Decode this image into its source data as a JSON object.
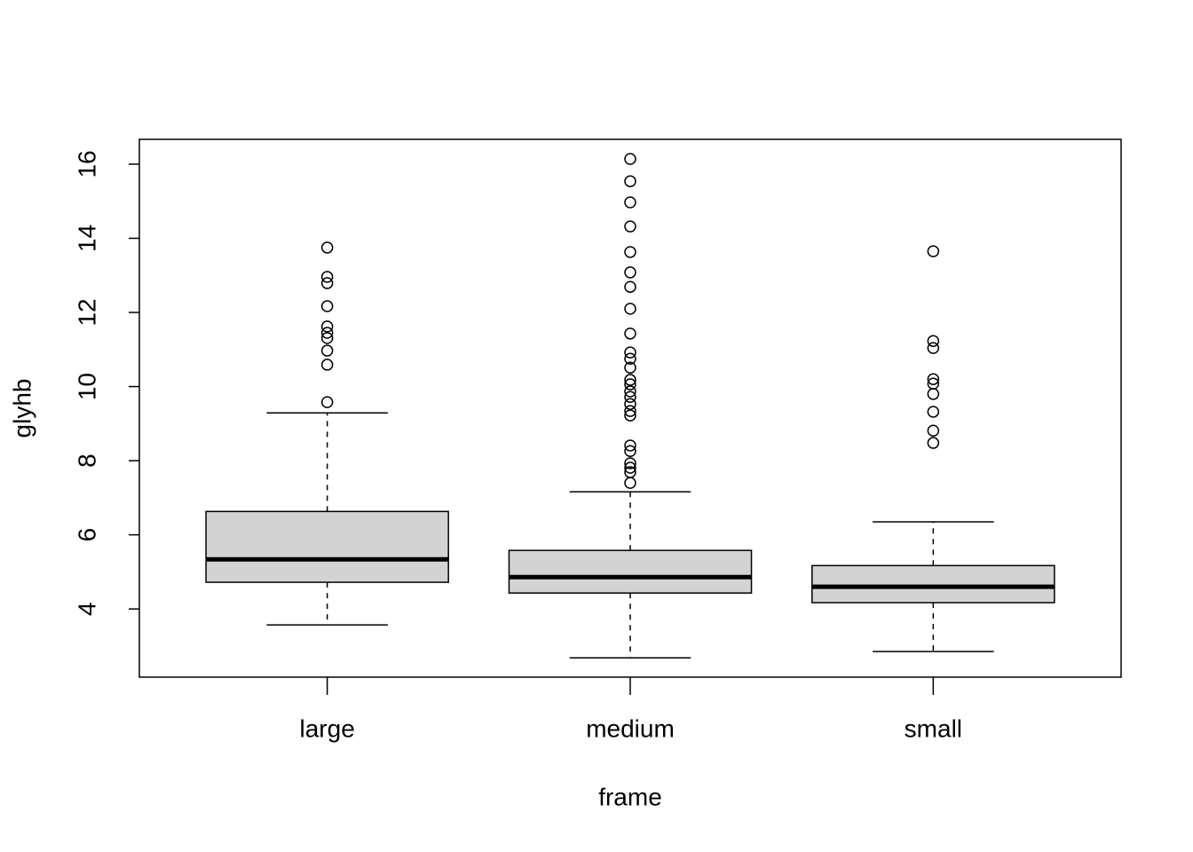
{
  "chart_data": {
    "type": "box",
    "xlabel": "frame",
    "ylabel": "glyhb",
    "categories": [
      "large",
      "medium",
      "small"
    ],
    "color": "#d3d3d3",
    "boxes": [
      {
        "whislo": 3.57,
        "q1": 4.72,
        "med": 5.34,
        "q3": 6.63,
        "whishi": 9.29,
        "outliers": [
          13.75,
          12.96,
          12.79,
          12.17,
          11.62,
          11.45,
          11.31,
          10.97,
          10.59,
          9.58
        ]
      },
      {
        "whislo": 2.68,
        "q1": 4.43,
        "med": 4.86,
        "q3": 5.58,
        "whishi": 7.16,
        "outliers": [
          16.14,
          15.54,
          14.97,
          14.32,
          13.63,
          13.08,
          12.69,
          12.1,
          11.43,
          10.92,
          10.75,
          10.51,
          10.18,
          10.06,
          9.87,
          9.72,
          9.53,
          9.34,
          9.22,
          8.41,
          8.26,
          7.93,
          7.81,
          7.69,
          7.4
        ]
      },
      {
        "whislo": 2.85,
        "q1": 4.17,
        "med": 4.6,
        "q3": 5.17,
        "whishi": 6.35,
        "outliers": [
          13.65,
          11.23,
          11.04,
          10.2,
          10.08,
          9.8,
          9.32,
          8.81,
          8.48
        ]
      }
    ],
    "ylim": [
      2.16,
      16.67
    ],
    "yticks": [
      4,
      6,
      8,
      10,
      12,
      14,
      16
    ],
    "grid": false
  }
}
